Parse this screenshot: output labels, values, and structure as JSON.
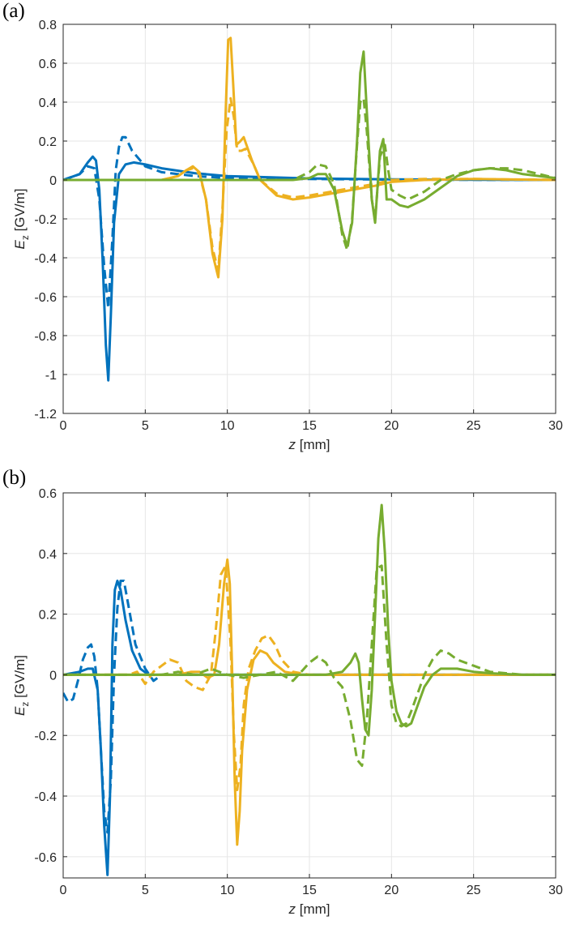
{
  "colors": {
    "blue": "#0072BD",
    "orange": "#EDB120",
    "green": "#77AC30",
    "grid": "#e6e6e6",
    "axis": "#262626"
  },
  "chart_data": [
    {
      "panel_label": "(a)",
      "type": "line",
      "xlabel_var": "z",
      "xlabel_unit": "[mm]",
      "ylabel_var": "E",
      "ylabel_sub": "z",
      "ylabel_unit": "[GV/m]",
      "xlim": [
        0,
        30
      ],
      "ylim": [
        -1.2,
        0.8
      ],
      "xticks": [
        0,
        5,
        10,
        15,
        20,
        25,
        30
      ],
      "yticks": [
        -1.2,
        -1,
        -0.8,
        -0.6,
        -0.4,
        -0.2,
        0,
        0.2,
        0.4,
        0.6,
        0.8
      ],
      "ytick_labels": [
        "-1.2",
        "-1",
        "-0.8",
        "-0.6",
        "-0.4",
        "-0.2",
        "0",
        "0.2",
        "0.4",
        "0.6",
        "0.8"
      ],
      "grid": true,
      "series": [
        {
          "color": "blue",
          "style": "solid",
          "x": [
            0,
            1,
            1.5,
            1.8,
            2.0,
            2.2,
            2.4,
            2.6,
            2.75,
            2.9,
            3.1,
            3.4,
            3.8,
            4.3,
            5,
            6,
            8,
            10,
            12,
            15,
            20,
            25,
            30
          ],
          "y": [
            0,
            0.03,
            0.09,
            0.12,
            0.1,
            -0.05,
            -0.4,
            -0.85,
            -1.03,
            -0.7,
            -0.22,
            0.03,
            0.08,
            0.09,
            0.08,
            0.06,
            0.035,
            0.02,
            0.015,
            0.008,
            0.003,
            0.001,
            0
          ]
        },
        {
          "color": "blue",
          "style": "dashed",
          "x": [
            0,
            1,
            1.5,
            1.9,
            2.2,
            2.5,
            2.75,
            3.0,
            3.2,
            3.4,
            3.6,
            3.8,
            4.2,
            5,
            6,
            8,
            10,
            15,
            20,
            25,
            30
          ],
          "y": [
            0,
            0.03,
            0.07,
            0.06,
            -0.1,
            -0.45,
            -0.66,
            -0.3,
            0.05,
            0.17,
            0.22,
            0.22,
            0.15,
            0.07,
            0.04,
            0.02,
            0.01,
            0.005,
            0.002,
            0.001,
            0
          ]
        },
        {
          "color": "orange",
          "style": "solid",
          "x": [
            0,
            6,
            7,
            7.5,
            7.9,
            8.3,
            8.7,
            9.1,
            9.45,
            9.7,
            9.9,
            10.05,
            10.2,
            10.35,
            10.55,
            10.8,
            11.0,
            11.5,
            12,
            13,
            14,
            15,
            17,
            19,
            20,
            22,
            25,
            30
          ],
          "y": [
            0,
            0,
            0.02,
            0.05,
            0.07,
            0.04,
            -0.1,
            -0.38,
            -0.5,
            -0.2,
            0.35,
            0.72,
            0.73,
            0.5,
            0.18,
            0.2,
            0.22,
            0.1,
            0.0,
            -0.08,
            -0.1,
            -0.09,
            -0.06,
            -0.03,
            -0.01,
            0.0,
            0.005,
            0
          ]
        },
        {
          "color": "orange",
          "style": "dashed",
          "x": [
            0,
            6,
            7,
            7.5,
            7.9,
            8.3,
            8.7,
            9.1,
            9.45,
            9.7,
            9.95,
            10.2,
            10.4,
            10.6,
            10.85,
            11.1,
            11.6,
            12,
            13,
            14,
            15,
            17,
            19,
            20,
            22,
            25,
            30
          ],
          "y": [
            0,
            0,
            0.02,
            0.05,
            0.06,
            0.03,
            -0.1,
            -0.35,
            -0.47,
            -0.15,
            0.25,
            0.42,
            0.32,
            0.15,
            0.15,
            0.16,
            0.08,
            0.0,
            -0.07,
            -0.09,
            -0.08,
            -0.05,
            -0.02,
            0.0,
            0.005,
            0.005,
            0
          ]
        },
        {
          "color": "green",
          "style": "solid",
          "x": [
            0,
            10,
            12,
            14,
            15,
            15.5,
            16,
            16.5,
            17,
            17.3,
            17.6,
            17.9,
            18.1,
            18.3,
            18.5,
            18.8,
            19.0,
            19.3,
            19.5,
            19.7,
            20,
            20.5,
            21,
            22,
            23,
            24,
            25,
            26,
            27,
            28,
            29,
            30
          ],
          "y": [
            0,
            0,
            0,
            0,
            0.01,
            0.03,
            0.03,
            -0.05,
            -0.26,
            -0.34,
            -0.22,
            0.2,
            0.55,
            0.66,
            0.35,
            -0.1,
            -0.22,
            0.15,
            0.21,
            -0.1,
            -0.1,
            -0.13,
            -0.14,
            -0.1,
            -0.04,
            0.02,
            0.05,
            0.06,
            0.05,
            0.03,
            0.02,
            0.01
          ]
        },
        {
          "color": "green",
          "style": "dashed",
          "x": [
            0,
            10,
            12,
            14,
            15,
            15.5,
            16,
            16.5,
            17,
            17.3,
            17.6,
            17.9,
            18.1,
            18.3,
            18.5,
            18.8,
            19.0,
            19.3,
            19.6,
            19.8,
            20,
            20.5,
            21,
            22,
            23,
            24,
            25,
            26,
            27,
            28,
            29,
            30
          ],
          "y": [
            0,
            0,
            0,
            0,
            0.04,
            0.08,
            0.07,
            -0.02,
            -0.28,
            -0.36,
            -0.2,
            0.18,
            0.4,
            0.42,
            0.25,
            -0.1,
            -0.2,
            0.12,
            0.18,
            0.05,
            -0.05,
            -0.08,
            -0.1,
            -0.06,
            0.0,
            0.03,
            0.05,
            0.06,
            0.06,
            0.05,
            0.03,
            0.01
          ]
        }
      ]
    },
    {
      "panel_label": "(b)",
      "type": "line",
      "xlabel_var": "z",
      "xlabel_unit": "[mm]",
      "ylabel_var": "E",
      "ylabel_sub": "z",
      "ylabel_unit": "[GV/m]",
      "xlim": [
        0,
        30
      ],
      "ylim": [
        -0.67,
        0.6
      ],
      "xticks": [
        0,
        5,
        10,
        15,
        20,
        25,
        30
      ],
      "yticks": [
        -0.6,
        -0.4,
        -0.2,
        0,
        0.2,
        0.4,
        0.6
      ],
      "ytick_labels": [
        "-0.6",
        "-0.4",
        "-0.2",
        "0",
        "0.2",
        "0.4",
        "0.6"
      ],
      "grid": true,
      "series": [
        {
          "color": "blue",
          "style": "solid",
          "x": [
            0,
            1,
            1.5,
            1.8,
            2.1,
            2.3,
            2.5,
            2.7,
            2.85,
            3.0,
            3.15,
            3.3,
            3.5,
            3.8,
            4.2,
            4.7,
            5.2,
            6,
            8,
            30
          ],
          "y": [
            0,
            0.01,
            0.02,
            0.02,
            -0.05,
            -0.25,
            -0.5,
            -0.66,
            -0.4,
            0.1,
            0.28,
            0.31,
            0.28,
            0.18,
            0.08,
            0.02,
            0.0,
            0.0,
            0,
            0
          ]
        },
        {
          "color": "blue",
          "style": "dashed",
          "x": [
            0,
            0.3,
            0.6,
            0.9,
            1.2,
            1.5,
            1.7,
            1.9,
            2.1,
            2.3,
            2.5,
            2.7,
            2.9,
            3.1,
            3.3,
            3.5,
            3.7,
            4.0,
            4.4,
            5,
            5.5,
            6,
            8,
            30
          ],
          "y": [
            -0.06,
            -0.09,
            -0.08,
            -0.02,
            0.05,
            0.09,
            0.1,
            0.06,
            -0.05,
            -0.25,
            -0.45,
            -0.52,
            -0.35,
            0.0,
            0.22,
            0.31,
            0.31,
            0.22,
            0.1,
            0.02,
            -0.02,
            0.0,
            0,
            0
          ]
        },
        {
          "color": "orange",
          "style": "solid",
          "x": [
            0,
            5,
            6,
            7,
            7.8,
            8.3,
            8.8,
            9.2,
            9.5,
            9.8,
            10.0,
            10.15,
            10.3,
            10.45,
            10.6,
            10.75,
            10.9,
            11.2,
            11.6,
            12,
            12.4,
            12.8,
            13.5,
            14.5,
            16,
            20,
            30
          ],
          "y": [
            0,
            0,
            0,
            0,
            0.01,
            0.01,
            -0.01,
            0.0,
            0.1,
            0.3,
            0.38,
            0.3,
            0.0,
            -0.35,
            -0.56,
            -0.45,
            -0.25,
            -0.05,
            0.05,
            0.08,
            0.07,
            0.04,
            0.01,
            0.0,
            0,
            0,
            0
          ]
        },
        {
          "color": "orange",
          "style": "dashed",
          "x": [
            0,
            4,
            4.5,
            5,
            5.5,
            6,
            6.5,
            7,
            7.5,
            8,
            8.5,
            9,
            9.3,
            9.6,
            9.9,
            10.2,
            10.4,
            10.6,
            10.8,
            11.0,
            11.3,
            11.7,
            12.1,
            12.5,
            12.9,
            13.3,
            14,
            15,
            16,
            20,
            30
          ],
          "y": [
            0,
            0,
            0.01,
            -0.03,
            0.01,
            0.03,
            0.05,
            0.04,
            -0.02,
            -0.04,
            -0.05,
            0.0,
            0.15,
            0.33,
            0.36,
            0.1,
            -0.2,
            -0.38,
            -0.3,
            -0.1,
            0.02,
            0.08,
            0.12,
            0.13,
            0.1,
            0.05,
            0.01,
            0.0,
            0,
            0,
            0
          ]
        },
        {
          "color": "green",
          "style": "solid",
          "x": [
            0,
            10,
            14,
            15,
            16,
            17,
            17.5,
            17.8,
            18.0,
            18.2,
            18.4,
            18.6,
            18.8,
            19.0,
            19.2,
            19.4,
            19.6,
            19.8,
            20,
            20.3,
            20.6,
            20.9,
            21.2,
            21.6,
            22,
            22.5,
            23,
            24,
            25,
            26,
            28,
            30
          ],
          "y": [
            0,
            0,
            0,
            0,
            0,
            0.01,
            0.04,
            0.07,
            0.04,
            -0.08,
            -0.18,
            -0.2,
            -0.05,
            0.2,
            0.45,
            0.56,
            0.4,
            0.15,
            -0.02,
            -0.12,
            -0.16,
            -0.17,
            -0.16,
            -0.1,
            -0.04,
            0.0,
            0.02,
            0.02,
            0.01,
            0.005,
            0,
            0
          ]
        },
        {
          "color": "green",
          "style": "dashed",
          "x": [
            0,
            6,
            7,
            8,
            9,
            10,
            11,
            12,
            13,
            14,
            14.5,
            15,
            15.5,
            16,
            16.5,
            17,
            17.5,
            17.9,
            18.2,
            18.5,
            18.8,
            19.1,
            19.4,
            19.7,
            20,
            20.3,
            20.6,
            20.9,
            21.2,
            21.6,
            22,
            22.5,
            23,
            23.5,
            24,
            25,
            26,
            28,
            30
          ],
          "y": [
            0,
            0,
            0.01,
            0.0,
            0.02,
            0.0,
            -0.01,
            0.0,
            0.01,
            -0.02,
            0.01,
            0.04,
            0.06,
            0.04,
            -0.01,
            -0.04,
            -0.15,
            -0.28,
            -0.3,
            -0.15,
            0.1,
            0.35,
            0.36,
            0.1,
            -0.1,
            -0.16,
            -0.17,
            -0.16,
            -0.12,
            -0.06,
            0.0,
            0.05,
            0.08,
            0.07,
            0.05,
            0.03,
            0.01,
            0,
            0
          ]
        }
      ]
    }
  ]
}
